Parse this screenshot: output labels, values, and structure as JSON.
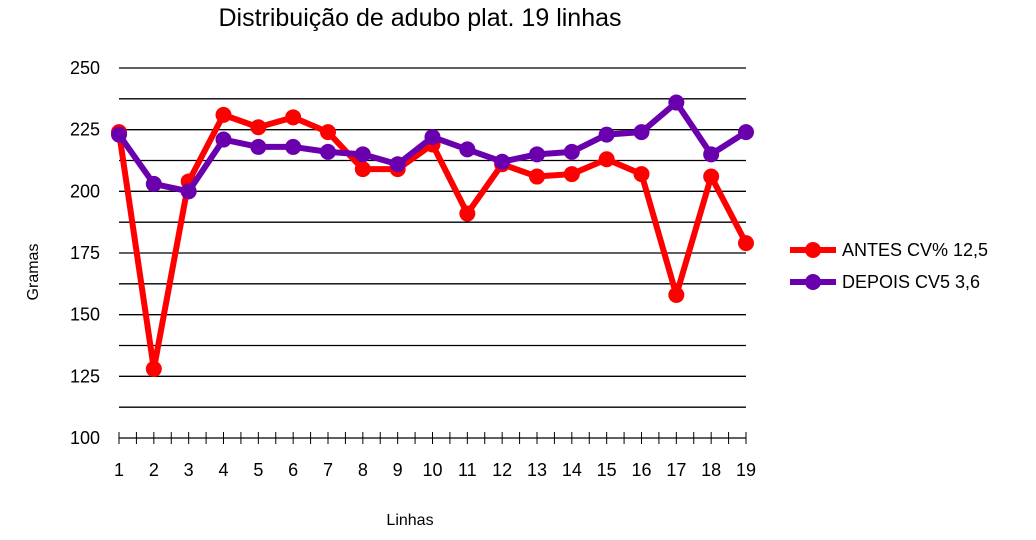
{
  "chart_data": {
    "type": "line",
    "title": "Distribuição de adubo plat. 19 linhas",
    "xlabel": "Linhas",
    "ylabel": "Gramas",
    "categories": [
      "1",
      "2",
      "3",
      "4",
      "5",
      "6",
      "7",
      "8",
      "9",
      "10",
      "11",
      "12",
      "13",
      "14",
      "15",
      "16",
      "17",
      "18",
      "19"
    ],
    "ylim": [
      100,
      250
    ],
    "yticks": [
      "100",
      "125",
      "150",
      "175",
      "200",
      "225",
      "250"
    ],
    "grid": true,
    "legend_position": "right",
    "series": [
      {
        "name": "ANTES CV% 12,5",
        "color": "#ff0000",
        "values": [
          224,
          128,
          204,
          231,
          226,
          230,
          224,
          209,
          209,
          219,
          191,
          211,
          206,
          207,
          213,
          207,
          158,
          206,
          179
        ]
      },
      {
        "name": "DEPOIS CV5 3,6",
        "color": "#6a00ad",
        "values": [
          223,
          203,
          200,
          221,
          218,
          218,
          216,
          215,
          211,
          222,
          217,
          212,
          215,
          216,
          223,
          224,
          236,
          215,
          224
        ]
      }
    ]
  }
}
